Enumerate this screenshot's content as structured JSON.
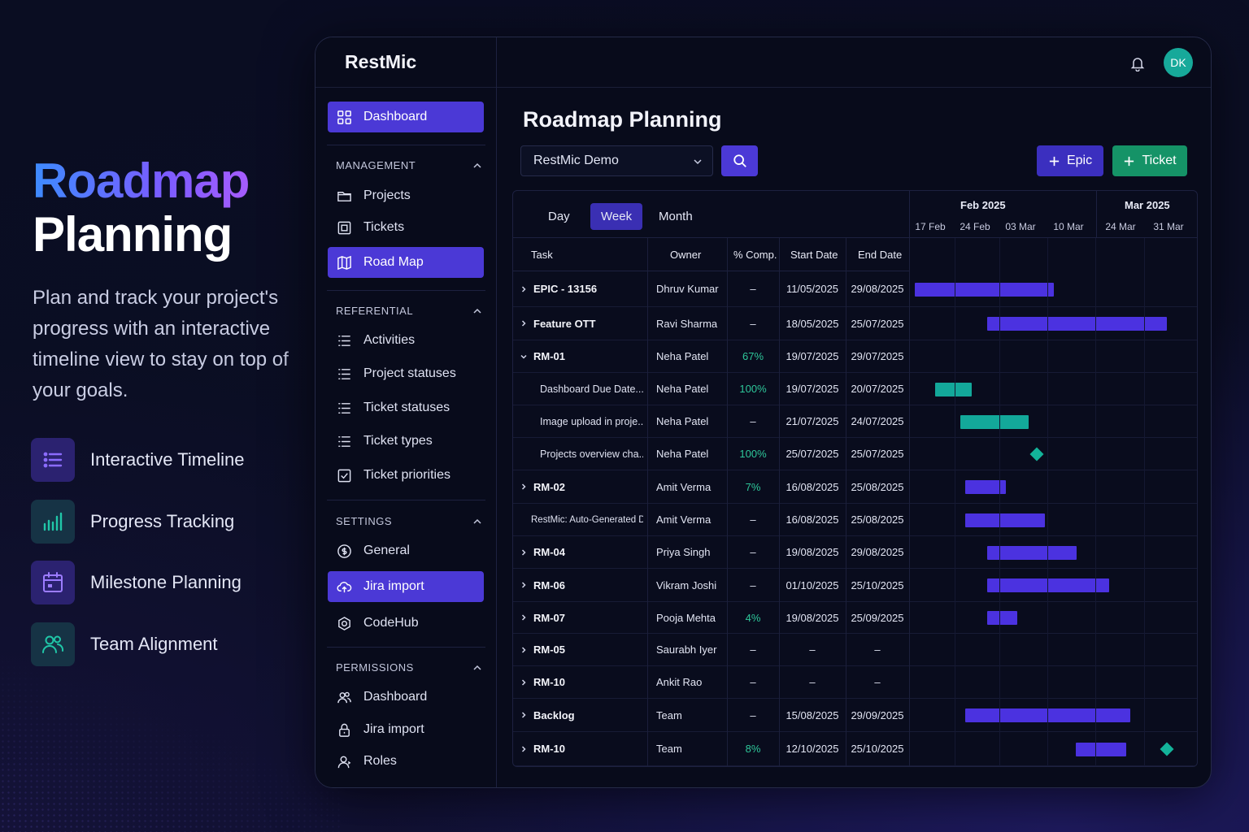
{
  "hero": {
    "title_line1": "Roadmap",
    "title_line2": "Planning",
    "description": "Plan and track your project's progress with an interactive timeline view to stay on top of your goals."
  },
  "features": [
    {
      "label": "Interactive Timeline",
      "icon": "list-icon",
      "color": "#8b6cff",
      "bg": "#2b2270"
    },
    {
      "label": "Progress Tracking",
      "icon": "bar-chart-icon",
      "color": "#20c7a8",
      "bg": "#163345"
    },
    {
      "label": "Milestone Planning",
      "icon": "calendar-icon",
      "color": "#9c7cff",
      "bg": "#2b2270"
    },
    {
      "label": "Team Alignment",
      "icon": "users-icon",
      "color": "#20c7a8",
      "bg": "#163345"
    }
  ],
  "app": {
    "brand": "RestMic",
    "user_initials": "DK",
    "page_title": "Roadmap Planning",
    "project_select": "RestMic Demo",
    "epic_button": "Epic",
    "ticket_button": "Ticket"
  },
  "sidebar": {
    "dashboard": "Dashboard",
    "management": {
      "title": "MANAGEMENT",
      "items": [
        "Projects",
        "Tickets",
        "Road Map"
      ]
    },
    "referential": {
      "title": "REFERENTIAL",
      "items": [
        "Activities",
        "Project statuses",
        "Ticket statuses",
        "Ticket types",
        "Ticket priorities"
      ]
    },
    "settings": {
      "title": "SETTINGS",
      "items": [
        "General",
        "Jira import",
        "CodeHub"
      ]
    },
    "permissions": {
      "title": "PERMISSIONS",
      "items": [
        "Dashboard",
        "Jira import",
        "Roles"
      ]
    }
  },
  "views": {
    "day": "Day",
    "week": "Week",
    "month": "Month",
    "active": "Week"
  },
  "timeline": {
    "months": [
      "Feb 2025",
      "Mar 2025"
    ],
    "weeks": [
      "17 Feb",
      "24 Feb",
      "03 Mar",
      "10 Mar",
      "24 Mar",
      "31 Mar"
    ]
  },
  "columns": {
    "task": "Task",
    "owner": "Owner",
    "pct": "% Comp.",
    "start": "Start Date",
    "end": "End Date"
  },
  "rows": [
    {
      "task": "EPIC - 13156",
      "owner": "Dhruv Kumar",
      "pct": "–",
      "start": "11/05/2025",
      "end": "29/08/2025",
      "level": 0,
      "expand": "right",
      "bar": {
        "type": "purple",
        "from": 0.02,
        "to": 0.5
      }
    },
    {
      "task": "Feature OTT",
      "owner": "Ravi Sharma",
      "pct": "–",
      "start": "18/05/2025",
      "end": "25/07/2025",
      "level": 0,
      "expand": "right",
      "bar": {
        "type": "purple",
        "from": 0.27,
        "to": 0.89
      }
    },
    {
      "task": "RM-01",
      "owner": "Neha Patel",
      "pct": "67%",
      "start": "19/07/2025",
      "end": "29/07/2025",
      "level": 0,
      "expand": "down",
      "pct_green": true
    },
    {
      "task": "Dashboard Due Date...",
      "owner": "Neha Patel",
      "pct": "100%",
      "start": "19/07/2025",
      "end": "20/07/2025",
      "level": 1,
      "pct_green": true,
      "bar": {
        "type": "teal",
        "from": 0.09,
        "to": 0.215
      }
    },
    {
      "task": "Image upload in proje...",
      "owner": "Neha Patel",
      "pct": "–",
      "start": "21/07/2025",
      "end": "24/07/2025",
      "level": 1,
      "bar": {
        "type": "teal",
        "from": 0.178,
        "to": 0.412
      }
    },
    {
      "task": "Projects overview cha...",
      "owner": "Neha Patel",
      "pct": "100%",
      "start": "25/07/2025",
      "end": "25/07/2025",
      "level": 1,
      "pct_green": true,
      "milestone": 0.44
    },
    {
      "task": "RM-02",
      "owner": "Amit Verma",
      "pct": "7%",
      "start": "16/08/2025",
      "end": "25/08/2025",
      "level": 0,
      "expand": "right",
      "pct_green": true,
      "bar": {
        "type": "purple",
        "from": 0.195,
        "to": 0.335
      }
    },
    {
      "task": "RestMic: Auto-Generated D...",
      "owner": "Amit Verma",
      "pct": "–",
      "start": "16/08/2025",
      "end": "25/08/2025",
      "level": 2,
      "bar": {
        "type": "purple",
        "from": 0.195,
        "to": 0.47
      }
    },
    {
      "task": "RM-04",
      "owner": "Priya Singh",
      "pct": "–",
      "start": "19/08/2025",
      "end": "29/08/2025",
      "level": 0,
      "expand": "right",
      "bar": {
        "type": "purple",
        "from": 0.27,
        "to": 0.58
      }
    },
    {
      "task": "RM-06",
      "owner": "Vikram Joshi",
      "pct": "–",
      "start": "01/10/2025",
      "end": "25/10/2025",
      "level": 0,
      "expand": "right",
      "bar": {
        "type": "purple",
        "from": 0.27,
        "to": 0.69
      }
    },
    {
      "task": "RM-07",
      "owner": "Pooja Mehta",
      "pct": "4%",
      "start": "19/08/2025",
      "end": "25/09/2025",
      "level": 0,
      "expand": "right",
      "pct_green": true,
      "bar": {
        "type": "purple",
        "from": 0.27,
        "to": 0.375
      }
    },
    {
      "task": "RM-05",
      "owner": "Saurabh Iyer",
      "pct": "–",
      "start": "–",
      "end": "–",
      "level": 0,
      "expand": "right"
    },
    {
      "task": "RM-10",
      "owner": "Ankit Rao",
      "pct": "–",
      "start": "–",
      "end": "–",
      "level": 0,
      "expand": "right"
    },
    {
      "task": "Backlog",
      "owner": "Team",
      "pct": "–",
      "start": "15/08/2025",
      "end": "29/09/2025",
      "level": 0,
      "expand": "right",
      "bar": {
        "type": "purple",
        "from": 0.195,
        "to": 0.765
      }
    },
    {
      "task": "RM-10",
      "owner": "Team",
      "pct": "8%",
      "start": "12/10/2025",
      "end": "25/10/2025",
      "level": 0,
      "expand": "right",
      "pct_green": true,
      "bar": {
        "type": "purple",
        "from": 0.575,
        "to": 0.75
      },
      "milestone": 0.89
    }
  ]
}
